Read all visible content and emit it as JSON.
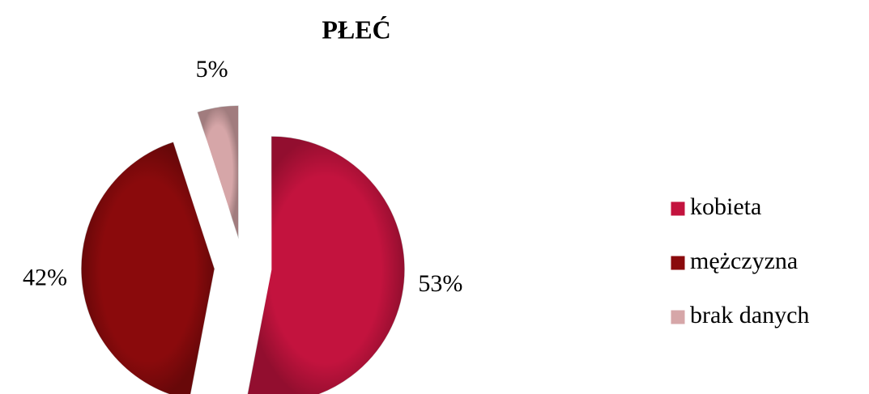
{
  "chart_data": {
    "type": "pie",
    "title": "PŁEĆ",
    "categories": [
      "kobieta",
      "mężczyzna",
      "brak danych"
    ],
    "values": [
      53,
      42,
      5
    ],
    "value_labels": [
      "53%",
      "42%",
      "5%"
    ],
    "colors": [
      "#c3133e",
      "#8a0a0c",
      "#d6a6a8"
    ],
    "legend": "right"
  }
}
